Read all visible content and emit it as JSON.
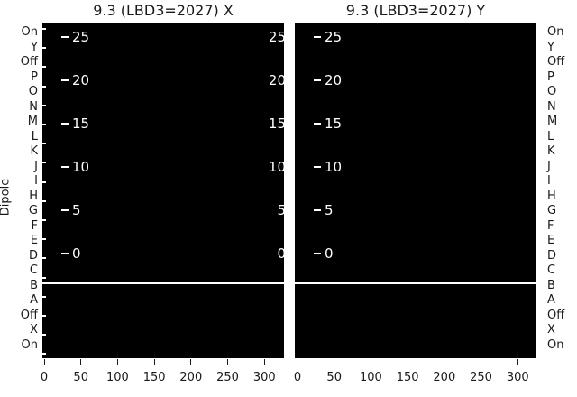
{
  "titles": {
    "left": "9.3 (LBD3=2027) X",
    "right": "9.3 (LBD3=2027) Y"
  },
  "ylabel": "Dipole",
  "dipole_rows": [
    "On",
    "Y",
    "Off",
    "P",
    "O",
    "N",
    "M",
    "L",
    "K",
    "J",
    "I",
    "H",
    "G",
    "F",
    "E",
    "D",
    "C",
    "B",
    "A",
    "Off",
    "X",
    "On"
  ],
  "inner_scale_values": [
    "25",
    "20",
    "15",
    "10",
    "5",
    "0"
  ],
  "x_tick_labels": [
    "0",
    "50",
    "100",
    "150",
    "200",
    "250",
    "300"
  ],
  "colors": {
    "panel_background": "#000000",
    "inner_text": "#ffffff",
    "separator_line": "#ffffff",
    "axis_text": "#1a1a1a",
    "figure_background": "#ffffff"
  },
  "chart_data": [
    {
      "type": "heatmap",
      "title": "9.3 (LBD3=2027) X",
      "xlabel": "",
      "ylabel": "Dipole",
      "x_ticks": [
        0,
        50,
        100,
        150,
        200,
        250,
        300
      ],
      "x_range": [
        0,
        330
      ],
      "y_categories": [
        "On",
        "Y",
        "Off",
        "P",
        "O",
        "N",
        "M",
        "L",
        "K",
        "J",
        "I",
        "H",
        "G",
        "F",
        "E",
        "D",
        "C",
        "B",
        "A",
        "Off",
        "X",
        "On"
      ],
      "inner_scale_labels": [
        25,
        20,
        15,
        10,
        5,
        0
      ],
      "values": "uniform minimum (entire panel rendered solid black)",
      "annotations": "white horizontal separator line between rows C and B",
      "grid": false,
      "legend": false
    },
    {
      "type": "heatmap",
      "title": "9.3 (LBD3=2027) Y",
      "xlabel": "",
      "ylabel": "",
      "x_ticks": [
        0,
        50,
        100,
        150,
        200,
        250,
        300
      ],
      "x_range": [
        0,
        330
      ],
      "y_categories": [
        "On",
        "Y",
        "Off",
        "P",
        "O",
        "N",
        "M",
        "L",
        "K",
        "J",
        "I",
        "H",
        "G",
        "F",
        "E",
        "D",
        "C",
        "B",
        "A",
        "Off",
        "X",
        "On"
      ],
      "inner_scale_labels": [
        25,
        20,
        15,
        10,
        5,
        0
      ],
      "values": "uniform minimum (entire panel rendered solid black)",
      "annotations": "white horizontal separator line between rows C and B",
      "grid": false,
      "legend": false
    }
  ]
}
